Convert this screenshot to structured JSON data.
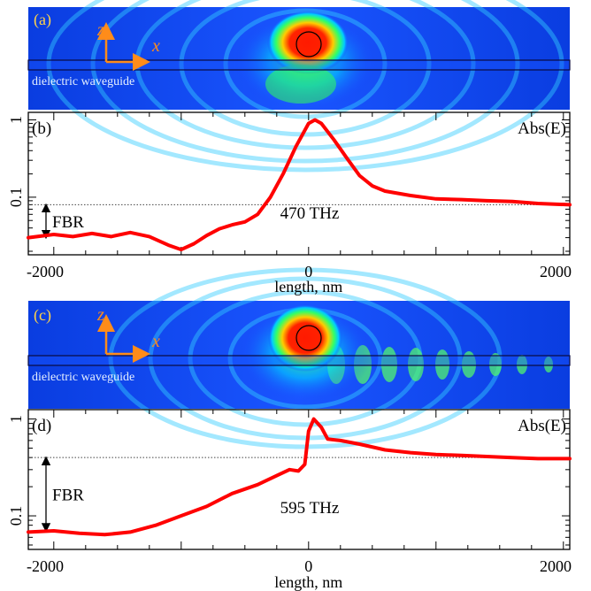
{
  "colors": {
    "field_background": "#1a3cff",
    "hotspot": "#ff1a00",
    "curve": "#ff0000",
    "panel_label": "#ffd24a",
    "axis_arrow": "#ff8c1a",
    "waveguide_label": "#e6f0ff"
  },
  "field_panels": [
    {
      "label": "(a)",
      "axis_z": "z",
      "axis_x": "x",
      "waveguide_label": "dielectric waveguide"
    },
    {
      "label": "(c)",
      "axis_z": "z",
      "axis_x": "x",
      "waveguide_label": "dielectric waveguide"
    }
  ],
  "chart_data": [
    {
      "type": "line",
      "panel_label": "(b)",
      "legend": "Abs(E)",
      "annotation_freq": "470 THz",
      "annotation_ratio": "FBR",
      "xlabel": "length, nm",
      "xlim": [
        -2200,
        2050
      ],
      "ylim_log": [
        0.018,
        1.25
      ],
      "x_tick_labels": [
        "-2000",
        "0",
        "2000"
      ],
      "y_tick_labels": [
        "1",
        "0.1"
      ],
      "dotted_reference_y": 0.08,
      "fbr_range": [
        0.03,
        0.08
      ],
      "x": [
        -2200,
        -2000,
        -1850,
        -1700,
        -1550,
        -1400,
        -1250,
        -1100,
        -1000,
        -900,
        -800,
        -700,
        -600,
        -500,
        -400,
        -300,
        -200,
        -100,
        0,
        50,
        100,
        200,
        300,
        400,
        500,
        600,
        800,
        1000,
        1200,
        1400,
        1600,
        1800,
        2050
      ],
      "y": [
        0.03,
        0.033,
        0.031,
        0.034,
        0.031,
        0.035,
        0.031,
        0.024,
        0.021,
        0.025,
        0.032,
        0.039,
        0.044,
        0.048,
        0.06,
        0.1,
        0.2,
        0.45,
        0.9,
        1.0,
        0.9,
        0.55,
        0.32,
        0.19,
        0.14,
        0.12,
        0.105,
        0.095,
        0.093,
        0.09,
        0.088,
        0.083,
        0.08
      ]
    },
    {
      "type": "line",
      "panel_label": "(d)",
      "legend": "Abs(E)",
      "annotation_freq": "595 THz",
      "annotation_ratio": "FBR",
      "xlabel": "length, nm",
      "xlim": [
        -2200,
        2050
      ],
      "ylim_log": [
        0.045,
        1.25
      ],
      "x_tick_labels": [
        "-2000",
        "0",
        "2000"
      ],
      "y_tick_labels": [
        "1",
        "0.1"
      ],
      "dotted_reference_y": 0.4,
      "fbr_range": [
        0.07,
        0.4
      ],
      "x": [
        -2200,
        -2000,
        -1800,
        -1600,
        -1400,
        -1200,
        -1000,
        -800,
        -600,
        -400,
        -250,
        -150,
        -80,
        -30,
        0,
        40,
        100,
        150,
        250,
        400,
        600,
        800,
        1000,
        1200,
        1400,
        1600,
        1800,
        2050
      ],
      "y": [
        0.068,
        0.07,
        0.066,
        0.064,
        0.068,
        0.08,
        0.1,
        0.125,
        0.17,
        0.21,
        0.26,
        0.3,
        0.29,
        0.34,
        0.75,
        1.0,
        0.82,
        0.62,
        0.6,
        0.55,
        0.48,
        0.45,
        0.43,
        0.42,
        0.41,
        0.4,
        0.39,
        0.39
      ]
    }
  ]
}
